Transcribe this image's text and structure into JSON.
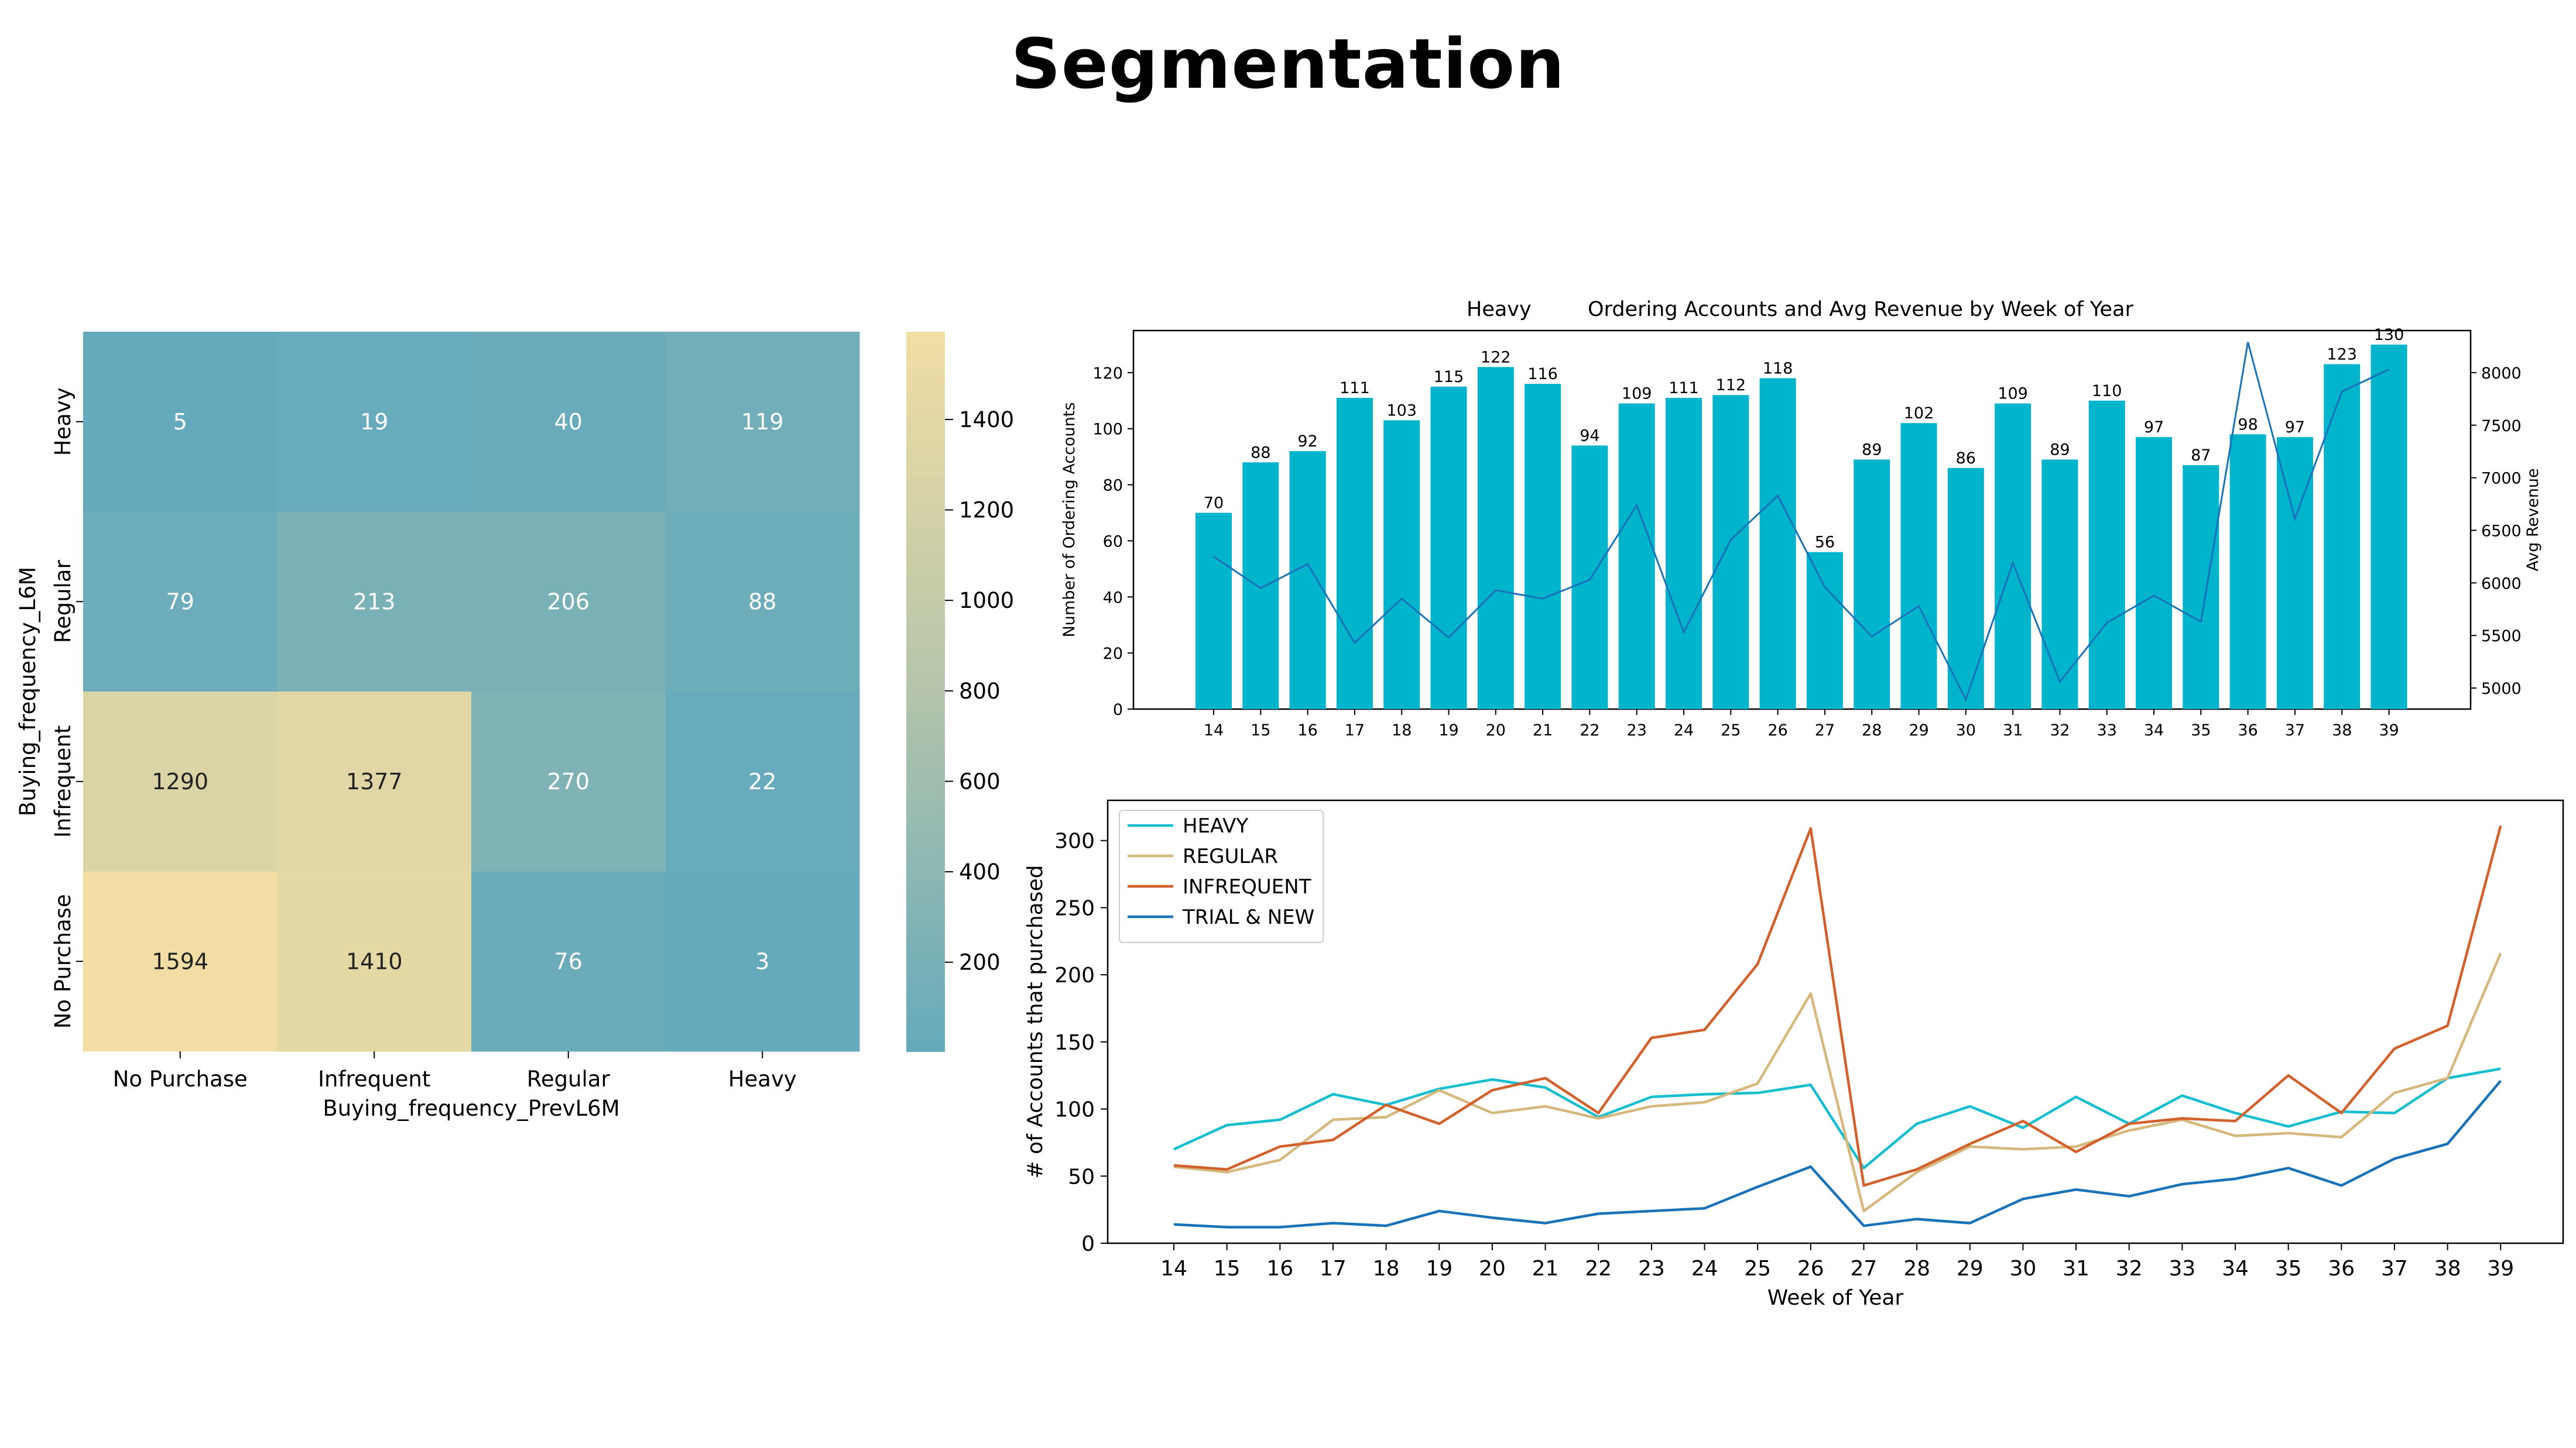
{
  "page": {
    "title": "Segmentation"
  },
  "chart_data": [
    {
      "type": "heatmap",
      "title": "",
      "xlabel": "Buying_frequency_PrevL6M",
      "ylabel": "Buying_frequency_L6M",
      "x_categories": [
        "No Purchase",
        "Infrequent",
        "Regular",
        "Heavy"
      ],
      "y_categories": [
        "Heavy",
        "Regular",
        "Infrequent",
        "No Purchase"
      ],
      "values": [
        [
          5,
          19,
          40,
          119
        ],
        [
          79,
          213,
          206,
          88
        ],
        [
          1290,
          1377,
          270,
          22
        ],
        [
          1594,
          1410,
          76,
          3
        ]
      ],
      "colorbar": {
        "ticks": [
          200,
          400,
          600,
          800,
          1000,
          1200,
          1400
        ],
        "range": [
          3,
          1594
        ]
      },
      "colors": {
        "low": "#65aabc",
        "mid": "#b4c4aa",
        "high": "#f2dea4",
        "text_light": "#ffffff",
        "text_dark": "#222222"
      }
    },
    {
      "type": "bar",
      "title_prefix": "Heavy",
      "title": "Ordering Accounts and Avg Revenue by Week of Year",
      "xlabel": "",
      "ylabel": "Number of Ordering Accounts",
      "y2label": "Avg Revenue",
      "categories": [
        "14",
        "15",
        "16",
        "17",
        "18",
        "19",
        "20",
        "21",
        "22",
        "23",
        "24",
        "25",
        "26",
        "27",
        "28",
        "29",
        "30",
        "31",
        "32",
        "33",
        "34",
        "35",
        "36",
        "37",
        "38",
        "39"
      ],
      "values": [
        70,
        88,
        92,
        111,
        103,
        115,
        122,
        116,
        94,
        109,
        111,
        112,
        118,
        56,
        89,
        102,
        86,
        109,
        89,
        110,
        97,
        87,
        98,
        97,
        123,
        130
      ],
      "line_values": [
        6250,
        5950,
        6180,
        5430,
        5850,
        5480,
        5930,
        5850,
        6030,
        6740,
        5530,
        6410,
        6830,
        5960,
        5490,
        5780,
        4890,
        6190,
        5060,
        5620,
        5880,
        5630,
        8290,
        6610,
        7820,
        8030
      ],
      "ylim": [
        0,
        135
      ],
      "yticks": [
        0,
        20,
        40,
        60,
        80,
        100,
        120
      ],
      "y2lim": [
        4800,
        8400
      ],
      "y2ticks": [
        5000,
        5500,
        6000,
        6500,
        7000,
        7500,
        8000
      ],
      "colors": {
        "bar": "#00b4cc",
        "line": "#1a73b8"
      }
    },
    {
      "type": "line",
      "title": "",
      "xlabel": "Week of Year",
      "ylabel": "# of Accounts that purchased",
      "x": [
        "14",
        "15",
        "16",
        "17",
        "18",
        "19",
        "20",
        "21",
        "22",
        "23",
        "24",
        "25",
        "26",
        "27",
        "28",
        "29",
        "30",
        "31",
        "32",
        "33",
        "34",
        "35",
        "36",
        "37",
        "38",
        "39"
      ],
      "ylim": [
        0,
        325
      ],
      "yticks": [
        0,
        50,
        100,
        150,
        200,
        250,
        300
      ],
      "legend": "top-left",
      "series": [
        {
          "name": "HEAVY",
          "color": "#17becf",
          "values": [
            70,
            88,
            92,
            111,
            103,
            115,
            122,
            116,
            94,
            109,
            111,
            112,
            118,
            56,
            89,
            102,
            86,
            109,
            89,
            110,
            97,
            87,
            98,
            97,
            123,
            130
          ]
        },
        {
          "name": "REGULAR",
          "color": "#d6b77c",
          "values": [
            57,
            53,
            62,
            92,
            94,
            114,
            97,
            102,
            93,
            102,
            105,
            119,
            186,
            24,
            53,
            72,
            70,
            72,
            84,
            92,
            80,
            82,
            79,
            112,
            123,
            216
          ]
        },
        {
          "name": "INFREQUENT",
          "color": "#d2612e",
          "values": [
            58,
            55,
            72,
            77,
            103,
            89,
            114,
            123,
            97,
            153,
            159,
            208,
            309,
            43,
            55,
            74,
            91,
            68,
            89,
            93,
            91,
            125,
            97,
            145,
            162,
            311
          ]
        },
        {
          "name": "TRIAL & NEW",
          "color": "#1a73b8",
          "values": [
            14,
            12,
            12,
            15,
            13,
            24,
            19,
            15,
            22,
            24,
            26,
            42,
            57,
            13,
            18,
            15,
            33,
            40,
            35,
            44,
            48,
            56,
            43,
            63,
            74,
            121
          ]
        }
      ]
    }
  ]
}
